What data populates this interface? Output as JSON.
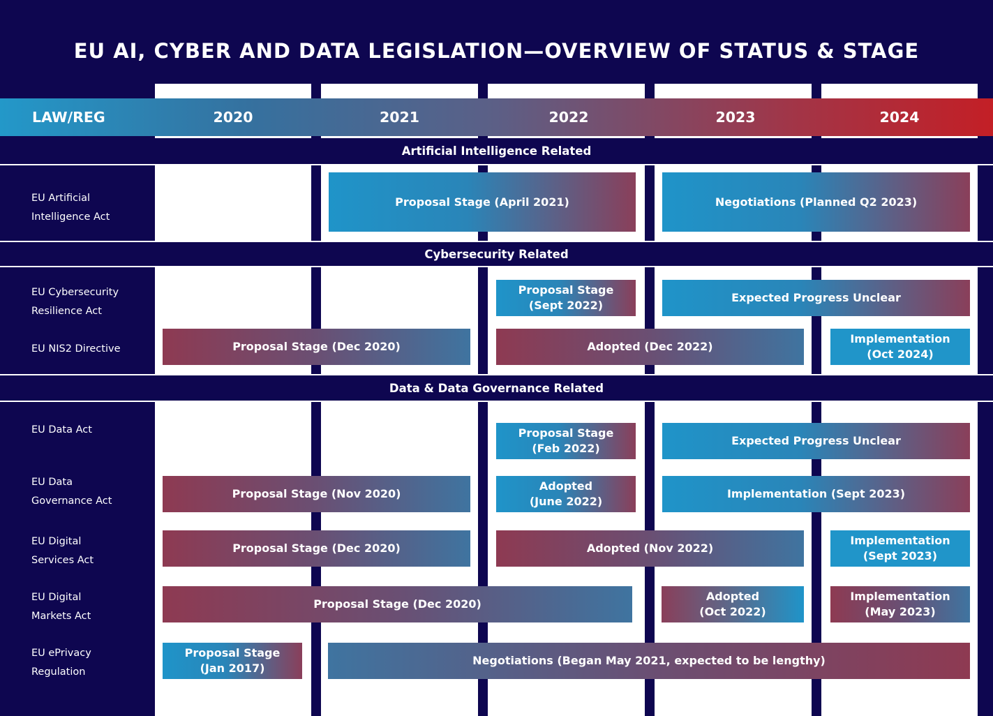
{
  "title": "EU AI, CYBER AND DATA LEGISLATION—OVERVIEW OF STATUS & STAGE",
  "header": {
    "law_label": "LAW/REG",
    "years": [
      "2020",
      "2021",
      "2022",
      "2023",
      "2024"
    ]
  },
  "sections": {
    "ai": "Artificial Intelligence Related",
    "cyber": "Cybersecurity Related",
    "data": "Data & Data Governance Related"
  },
  "laws": {
    "ai_act": [
      "EU Artificial",
      "Intelligence Act"
    ],
    "cra": [
      "EU Cybersecurity",
      "Resilience Act"
    ],
    "nis2": [
      "EU NIS2 Directive"
    ],
    "data_act": [
      "EU Data Act"
    ],
    "dga": [
      "EU Data",
      "Governance Act"
    ],
    "dsa": [
      "EU Digital",
      "Services Act"
    ],
    "dma": [
      "EU Digital",
      "Markets Act"
    ],
    "eprivacy": [
      "EU ePrivacy",
      "Regulation"
    ]
  },
  "bars": {
    "ai_proposal": [
      "Proposal Stage (April 2021)"
    ],
    "ai_negotiations": [
      "Negotiations (Planned Q2 2023)"
    ],
    "cra_proposal": [
      "Proposal Stage",
      "(Sept 2022)"
    ],
    "cra_unclear": [
      "Expected Progress Unclear"
    ],
    "nis2_proposal": [
      "Proposal Stage (Dec 2020)"
    ],
    "nis2_adopted": [
      "Adopted (Dec 2022)"
    ],
    "nis2_impl": [
      "Implementation",
      "(Oct 2024)"
    ],
    "dataact_proposal": [
      "Proposal Stage",
      "(Feb 2022)"
    ],
    "dataact_unclear": [
      "Expected Progress Unclear"
    ],
    "dga_proposal": [
      "Proposal Stage (Nov 2020)"
    ],
    "dga_adopted": [
      "Adopted",
      "(June 2022)"
    ],
    "dga_impl": [
      "Implementation (Sept 2023)"
    ],
    "dsa_proposal": [
      "Proposal Stage (Dec 2020)"
    ],
    "dsa_adopted": [
      "Adopted (Nov 2022)"
    ],
    "dsa_impl": [
      "Implementation",
      "(Sept 2023)"
    ],
    "dma_proposal": [
      "Proposal Stage (Dec 2020)"
    ],
    "dma_adopted": [
      "Adopted",
      "(Oct 2022)"
    ],
    "dma_impl": [
      "Implementation",
      "(May 2023)"
    ],
    "eprivacy_proposal": [
      "Proposal Stage",
      "(Jan 2017)"
    ],
    "eprivacy_negotiations": [
      "Negotiations (Began May 2021, expected to be lengthy)"
    ]
  },
  "colors": {
    "background": "#0e0650",
    "accent_blue": "#2095c9",
    "accent_red": "#c31f26"
  }
}
